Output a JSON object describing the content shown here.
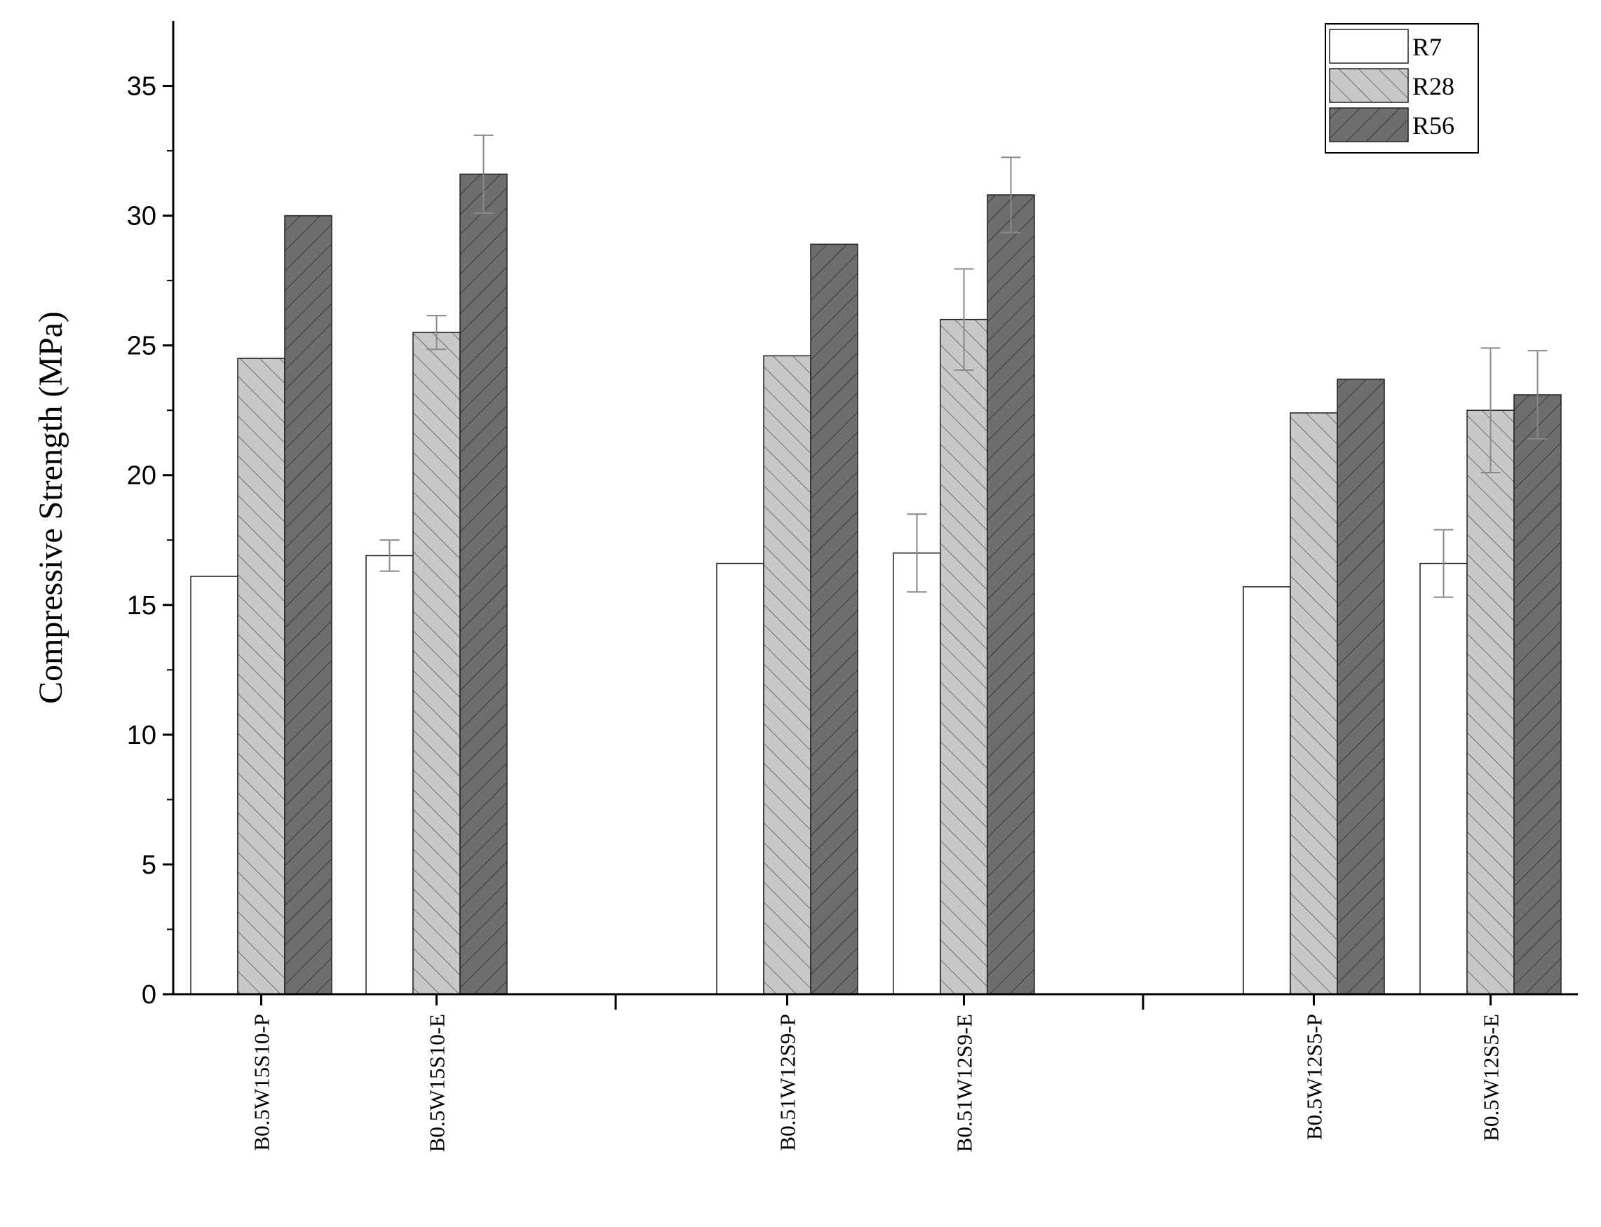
{
  "chart_data": {
    "type": "bar",
    "title": "",
    "xlabel": "",
    "ylabel": "Compressive Strength (MPa)",
    "ylim": [
      0,
      37.5
    ],
    "yticks": [
      0,
      5,
      10,
      15,
      20,
      25,
      30,
      35
    ],
    "grid": false,
    "legend_position": "top-right",
    "categories": [
      "B0.5W15S10-P",
      "B0.5W15S10-E",
      "B0.51W12S9-P",
      "B0.51W12S9-E",
      "B0.5W12S5-P",
      "B0.5W12S5-E"
    ],
    "category_groups": [
      [
        0,
        1
      ],
      [
        2,
        3
      ],
      [
        4,
        5
      ]
    ],
    "series": [
      {
        "name": "R7",
        "fill": "#ffffff",
        "hatch": "none",
        "values": [
          16.1,
          16.9,
          16.6,
          17.0,
          15.7,
          16.6
        ],
        "errors": [
          null,
          0.6,
          null,
          1.5,
          null,
          1.3
        ]
      },
      {
        "name": "R28",
        "fill": "#c8c8c8",
        "hatch": "forward",
        "values": [
          24.5,
          25.5,
          24.6,
          26.0,
          22.4,
          22.5
        ],
        "errors": [
          null,
          0.65,
          null,
          1.95,
          null,
          2.4
        ]
      },
      {
        "name": "R56",
        "fill": "#6e6e6e",
        "hatch": "backward",
        "values": [
          30.0,
          31.6,
          28.9,
          30.8,
          23.7,
          23.1
        ],
        "errors": [
          null,
          1.5,
          null,
          1.45,
          null,
          1.7
        ]
      }
    ]
  }
}
